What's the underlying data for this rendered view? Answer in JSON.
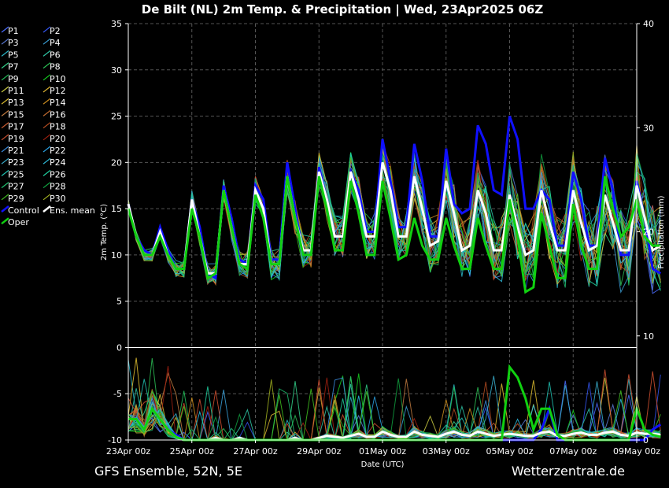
{
  "chart_data": {
    "type": "line",
    "title": "De Bilt  (NL)  2m Temp. & Precipitation | Wed, 23Apr2025 06Z",
    "ylabel_left": "2m Temp. (°C)",
    "ylabel_right": "Precipitation (mm)",
    "xlabel": "Date (UTC)",
    "footer_left": "GFS Ensemble, 52N, 5E",
    "footer_right": "Wetterzentrale.de",
    "ylim_left": [
      -10,
      35
    ],
    "ylim_right": [
      0,
      40
    ],
    "yticks_left": [
      "35",
      "30",
      "25",
      "20",
      "15",
      "10",
      "5",
      "0",
      "-5",
      "-10"
    ],
    "yticks_right": [
      "40",
      "30",
      "20",
      "10",
      "0"
    ],
    "x_ticks": [
      "23Apr 00z",
      "25Apr 00z",
      "27Apr 00z",
      "29Apr 00z",
      "01May 00z",
      "03May 00z",
      "05May 00z",
      "07May 00z",
      "09May 00z"
    ],
    "x_range_hours": [
      0,
      384
    ],
    "step_hours": 6,
    "grid": true,
    "legend_placement": "left",
    "legend": [
      {
        "name": "P1",
        "color": "#4a6cff"
      },
      {
        "name": "P2",
        "color": "#3355ee"
      },
      {
        "name": "P3",
        "color": "#5b7bd6"
      },
      {
        "name": "P4",
        "color": "#3a9fd6"
      },
      {
        "name": "P5",
        "color": "#29b6c8"
      },
      {
        "name": "P6",
        "color": "#2fc6a6"
      },
      {
        "name": "P7",
        "color": "#33d08a"
      },
      {
        "name": "P8",
        "color": "#2bbf55"
      },
      {
        "name": "P9",
        "color": "#22c05a"
      },
      {
        "name": "P10",
        "color": "#14d020"
      },
      {
        "name": "P11",
        "color": "#c8c840"
      },
      {
        "name": "P12",
        "color": "#d8b030"
      },
      {
        "name": "P13",
        "color": "#e0c030"
      },
      {
        "name": "P14",
        "color": "#d09020"
      },
      {
        "name": "P15",
        "color": "#c07a40"
      },
      {
        "name": "P16",
        "color": "#c06a30"
      },
      {
        "name": "P17",
        "color": "#c85a30"
      },
      {
        "name": "P18",
        "color": "#b04a20"
      },
      {
        "name": "P19",
        "color": "#d05030"
      },
      {
        "name": "P20",
        "color": "#a02010"
      },
      {
        "name": "P21",
        "color": "#3a88d8"
      },
      {
        "name": "P22",
        "color": "#2aa0e0"
      },
      {
        "name": "P23",
        "color": "#3ab0d0"
      },
      {
        "name": "P24",
        "color": "#30c0e0"
      },
      {
        "name": "P25",
        "color": "#20c0b0"
      },
      {
        "name": "P26",
        "color": "#20d0a0"
      },
      {
        "name": "P27",
        "color": "#20c070"
      },
      {
        "name": "P28",
        "color": "#10a040"
      },
      {
        "name": "P29",
        "color": "#40c020"
      },
      {
        "name": "P30",
        "color": "#a0b020"
      },
      {
        "name": "Control",
        "color": "#1010ff"
      },
      {
        "name": "Ens. mean",
        "color": "#ffffff"
      },
      {
        "name": "Oper",
        "color": "#10d010"
      }
    ],
    "series": [
      {
        "name": "Control",
        "color": "#1010ff",
        "temp": [
          15.5,
          12,
          10.5,
          10,
          13,
          10.5,
          8.5,
          8.5,
          16,
          13,
          8,
          7.5,
          17.5,
          14,
          9.5,
          9,
          17.5,
          16,
          9.5,
          9.5,
          20,
          15,
          10,
          10,
          19.5,
          16,
          12,
          12,
          19,
          17,
          12.5,
          12.5,
          22.5,
          18,
          13,
          13,
          22,
          18,
          12,
          12,
          21.5,
          15.5,
          14.5,
          15,
          24,
          22,
          17,
          16.5,
          25,
          22.5,
          15,
          15,
          17,
          16,
          11,
          11,
          19,
          16,
          11,
          11,
          20.5,
          17,
          10,
          10,
          18,
          14,
          8.5,
          8
        ],
        "precip": [
          2,
          2,
          1,
          3,
          2,
          1,
          0.5,
          0,
          0,
          0,
          0,
          0,
          0,
          0,
          0,
          0,
          0,
          0,
          0,
          0,
          0,
          0,
          0,
          0,
          0,
          0,
          0,
          0,
          0,
          0,
          0,
          0,
          0,
          0,
          0,
          0,
          0,
          0,
          0,
          0,
          0,
          0,
          0,
          0,
          0,
          0,
          0,
          0,
          0,
          0,
          0,
          0,
          1,
          3,
          0,
          0,
          0,
          0,
          0,
          0,
          0,
          0,
          0,
          0,
          0,
          0,
          1,
          1.5
        ]
      },
      {
        "name": "Ens. mean",
        "color": "#ffffff",
        "temp": [
          15.5,
          12,
          10,
          10,
          12.5,
          10,
          8.5,
          8.5,
          16,
          12,
          8,
          8,
          17,
          13,
          9,
          9,
          17,
          15,
          9,
          9,
          18.5,
          14,
          10.5,
          10.5,
          19,
          16,
          12,
          12,
          19,
          16,
          12,
          12,
          20,
          17,
          12,
          12,
          18.5,
          15,
          11,
          11.5,
          18,
          14.5,
          10.5,
          11,
          17,
          14.5,
          10.5,
          10.5,
          16.5,
          13,
          10,
          10.5,
          17,
          13.5,
          10.5,
          10.5,
          17,
          13.5,
          10.5,
          11,
          16.5,
          13.5,
          10.5,
          10.5,
          17.5,
          14,
          10.5,
          11
        ],
        "precip": [
          2,
          2,
          1,
          3,
          2,
          1,
          0.3,
          0,
          0,
          0,
          0,
          0.2,
          0,
          0,
          0.2,
          0,
          0,
          0,
          0,
          0,
          0,
          0.2,
          0,
          0,
          0.2,
          0.4,
          0.3,
          0.2,
          0.4,
          0.6,
          0.3,
          0.3,
          0.8,
          0.5,
          0.3,
          0.3,
          0.8,
          0.5,
          0.4,
          0.3,
          0.6,
          0.8,
          0.5,
          0.4,
          0.8,
          0.6,
          0.4,
          0.5,
          0.6,
          0.5,
          0.4,
          0.4,
          0.7,
          0.8,
          0.4,
          0.4,
          0.6,
          0.7,
          0.5,
          0.5,
          0.7,
          0.8,
          0.5,
          0.4,
          0.7,
          0.6,
          0.6,
          0.5
        ]
      },
      {
        "name": "Oper",
        "color": "#10d010",
        "temp": [
          15,
          12,
          10,
          10,
          12,
          10,
          8.5,
          8.5,
          15,
          12,
          7.5,
          8,
          17,
          13,
          9,
          8.5,
          16.5,
          14,
          9,
          9,
          18.5,
          14,
          10,
          10,
          18.5,
          15,
          10.5,
          10.5,
          18,
          14.5,
          10,
          10,
          18,
          14,
          9.5,
          10,
          14,
          11,
          9.5,
          9.5,
          14,
          11,
          8.5,
          8.5,
          14,
          11,
          8.5,
          8.5,
          16,
          12,
          6,
          6.5,
          14.5,
          11,
          7.5,
          7.5,
          15.5,
          11,
          8.5,
          8.5,
          18.5,
          15,
          12,
          13,
          16,
          12,
          11,
          11
        ],
        "precip": [
          2,
          2,
          1,
          3,
          2,
          1,
          0.3,
          0,
          0,
          0,
          0,
          0,
          0,
          0,
          0,
          0,
          0,
          0,
          0,
          0,
          0,
          0,
          0,
          0,
          0,
          0,
          0,
          0,
          0,
          0,
          0,
          0,
          0,
          0,
          0,
          0,
          0,
          0,
          0,
          0,
          0,
          0,
          0,
          0,
          0,
          0,
          0,
          0,
          7,
          6,
          4,
          1,
          3,
          3,
          0.5,
          0,
          0,
          0,
          0,
          0,
          0,
          0,
          0,
          0,
          3,
          1,
          0.5,
          0.3
        ]
      }
    ]
  }
}
